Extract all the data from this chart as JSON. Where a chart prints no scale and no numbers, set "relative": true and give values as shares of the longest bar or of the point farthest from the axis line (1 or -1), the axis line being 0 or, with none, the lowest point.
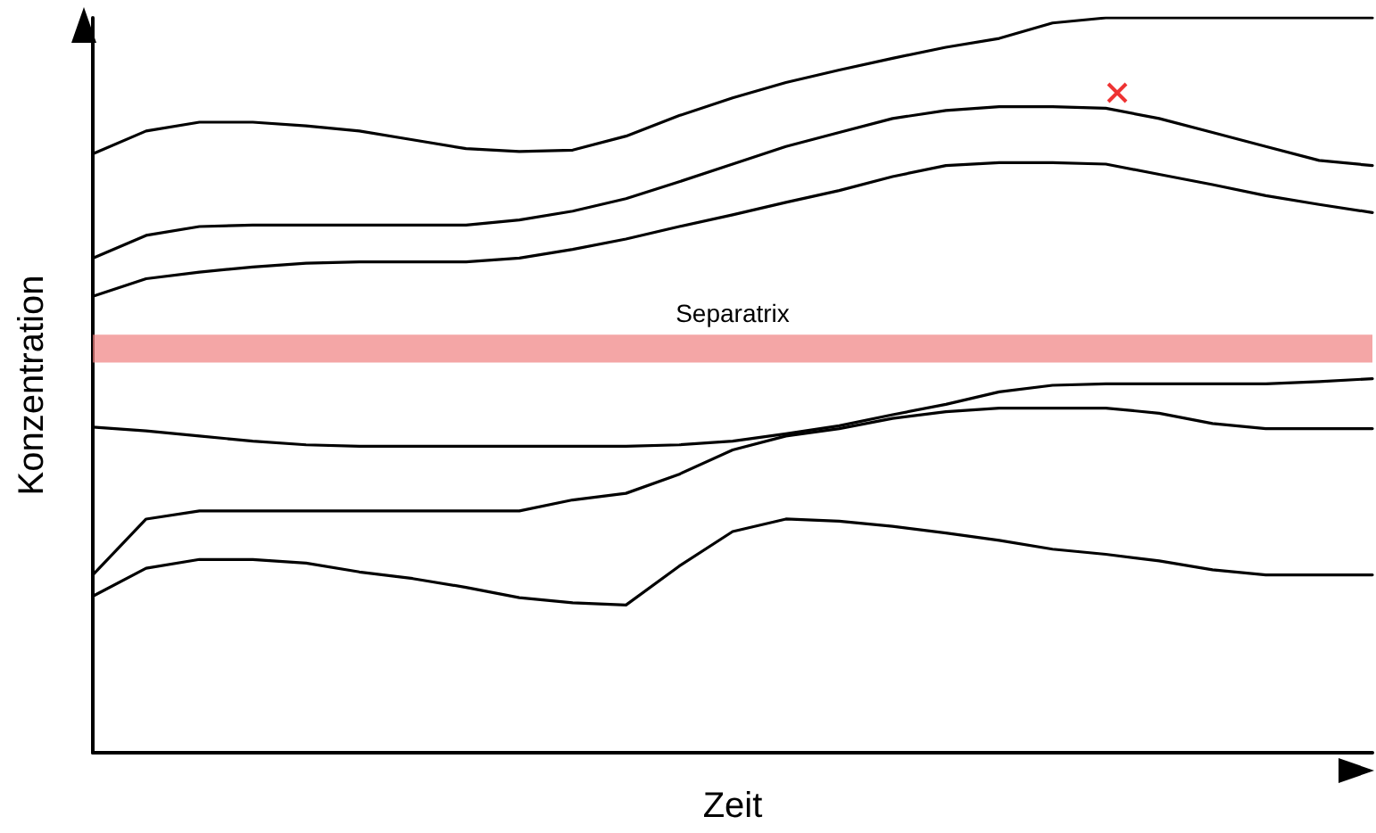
{
  "chart_data": {
    "type": "line",
    "relative": true,
    "xlabel": "Zeit",
    "ylabel": "Konzentration",
    "marker": "none",
    "line_style": "solid",
    "categories": [
      null,
      null,
      null,
      null,
      null,
      null,
      null,
      null,
      null,
      null,
      null,
      null,
      null,
      null,
      null,
      null,
      null,
      null,
      null,
      null,
      null,
      null,
      null,
      null,
      null
    ],
    "series": [
      {
        "color": "#000000",
        "values": [
          0.815,
          0.846,
          0.858,
          0.858,
          0.853,
          0.846,
          0.834,
          0.822,
          0.818,
          0.82,
          0.839,
          0.867,
          0.891,
          0.912,
          0.929,
          0.945,
          0.96,
          0.972,
          0.993,
          1,
          1,
          1,
          1,
          1,
          1
        ]
      },
      {
        "color": "#000000",
        "values": [
          0.673,
          0.704,
          0.716,
          0.718,
          0.718,
          0.718,
          0.718,
          0.718,
          0.725,
          0.737,
          0.754,
          0.777,
          0.801,
          0.825,
          0.844,
          0.863,
          0.874,
          0.879,
          0.879,
          0.877,
          0.863,
          0.844,
          0.825,
          0.806,
          0.799
        ]
      },
      {
        "color": "#000000",
        "values": [
          0.621,
          0.645,
          0.654,
          0.661,
          0.666,
          0.668,
          0.668,
          0.668,
          0.673,
          0.685,
          0.699,
          0.716,
          0.732,
          0.749,
          0.765,
          0.784,
          0.799,
          0.803,
          0.803,
          0.801,
          0.787,
          0.773,
          0.758,
          0.746,
          0.735
        ]
      },
      {
        "color": "#000000",
        "values": [
          0.443,
          0.438,
          0.431,
          0.424,
          0.419,
          0.417,
          0.417,
          0.417,
          0.417,
          0.417,
          0.417,
          0.419,
          0.424,
          0.434,
          0.445,
          0.46,
          0.474,
          0.491,
          0.5,
          0.502,
          0.502,
          0.502,
          0.502,
          0.505,
          0.509
        ]
      },
      {
        "color": "#000000",
        "values": [
          0.242,
          0.318,
          0.329,
          0.329,
          0.329,
          0.329,
          0.329,
          0.329,
          0.329,
          0.344,
          0.353,
          0.379,
          0.412,
          0.431,
          0.441,
          0.455,
          0.464,
          0.469,
          0.469,
          0.469,
          0.462,
          0.448,
          0.441,
          0.441,
          0.441
        ]
      },
      {
        "color": "#000000",
        "values": [
          0.213,
          0.251,
          0.263,
          0.263,
          0.258,
          0.246,
          0.237,
          0.225,
          0.211,
          0.204,
          0.201,
          0.254,
          0.301,
          0.318,
          0.315,
          0.308,
          0.299,
          0.289,
          0.277,
          0.27,
          0.261,
          0.249,
          0.242,
          0.242,
          0.242
        ]
      }
    ],
    "bands": [
      {
        "axis": "y",
        "from": 0.531,
        "to": 0.569,
        "label": "Separatrix",
        "color": "#f08080"
      }
    ]
  }
}
